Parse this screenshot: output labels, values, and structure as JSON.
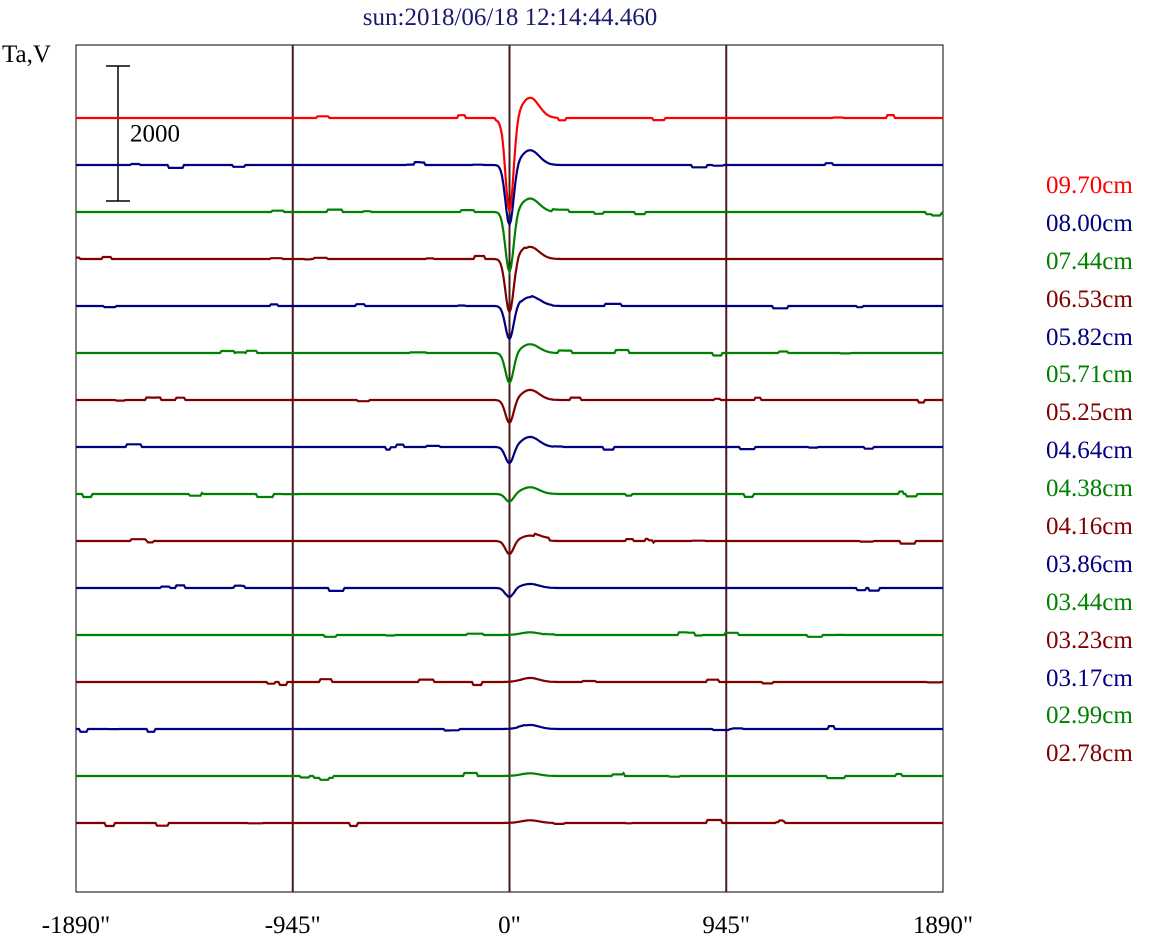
{
  "title": "sun:2018/06/18 12:14:44.460",
  "ylabel": "Ta,V",
  "chart_data": {
    "type": "line",
    "title": "sun:2018/06/18 12:14:44.460",
    "ylabel": "Ta,V",
    "xlabel": "",
    "x_unit": "arcsec",
    "xlim": [
      -1890,
      1890
    ],
    "x_ticks": [
      "-1890\"",
      "-945\"",
      "0\"",
      "945\"",
      "1890\""
    ],
    "vertical_markers": [
      -945,
      0,
      945
    ],
    "scale_bar": {
      "label": "2000",
      "value": 2000
    },
    "grid": false,
    "legend_position": "right",
    "colors": {
      "red": "#ff0000",
      "blue": "#000080",
      "green": "#008000",
      "darkred": "#800000",
      "axis": "#000000",
      "marker": "#4a1a1a"
    },
    "series": [
      {
        "name": "09.70cm",
        "color": "#ff0000",
        "dip": 1400,
        "bump": 300
      },
      {
        "name": "08.00cm",
        "color": "#000080",
        "dip": 900,
        "bump": 220
      },
      {
        "name": "07.44cm",
        "color": "#008000",
        "dip": 900,
        "bump": 200
      },
      {
        "name": "06.53cm",
        "color": "#800000",
        "dip": 800,
        "bump": 180
      },
      {
        "name": "05.82cm",
        "color": "#000080",
        "dip": 500,
        "bump": 150
      },
      {
        "name": "05.71cm",
        "color": "#008000",
        "dip": 450,
        "bump": 130
      },
      {
        "name": "05.25cm",
        "color": "#800000",
        "dip": 350,
        "bump": 150
      },
      {
        "name": "04.64cm",
        "color": "#000080",
        "dip": 250,
        "bump": 150
      },
      {
        "name": "04.38cm",
        "color": "#008000",
        "dip": 120,
        "bump": 100
      },
      {
        "name": "04.16cm",
        "color": "#800000",
        "dip": 200,
        "bump": 80
      },
      {
        "name": "03.86cm",
        "color": "#000080",
        "dip": 150,
        "bump": 60
      },
      {
        "name": "03.44cm",
        "color": "#008000",
        "dip": 0,
        "bump": 40
      },
      {
        "name": "03.23cm",
        "color": "#800000",
        "dip": 0,
        "bump": 60
      },
      {
        "name": "03.17cm",
        "color": "#000080",
        "dip": 0,
        "bump": 60
      },
      {
        "name": "02.99cm",
        "color": "#008000",
        "dip": 0,
        "bump": 40
      },
      {
        "name": "02.78cm",
        "color": "#800000",
        "dip": 0,
        "bump": 40
      }
    ]
  }
}
